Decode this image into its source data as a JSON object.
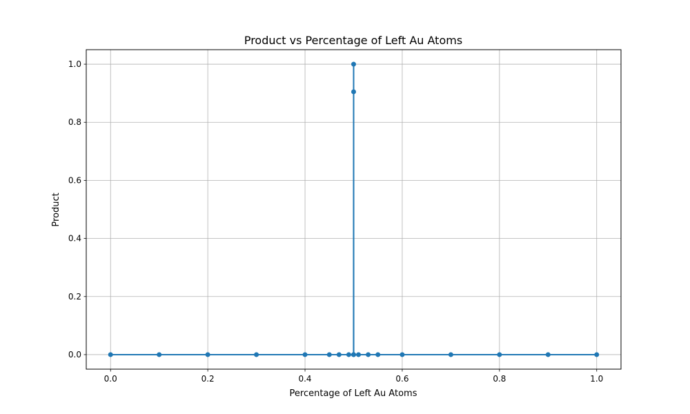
{
  "chart_data": {
    "type": "line",
    "title": "Product vs Percentage of Left Au Atoms",
    "xlabel": "Percentage of Left Au Atoms",
    "ylabel": "Product",
    "xlim": [
      -0.05,
      1.05
    ],
    "ylim": [
      -0.05,
      1.05
    ],
    "xticks": [
      "0.0",
      "0.2",
      "0.4",
      "0.6",
      "0.8",
      "1.0"
    ],
    "yticks": [
      "0.0",
      "0.2",
      "0.4",
      "0.6",
      "0.8",
      "1.0"
    ],
    "grid": true,
    "series": [
      {
        "color": "#1f77b4",
        "marker": "circle",
        "x": [
          0.0,
          0.1,
          0.2,
          0.3,
          0.4,
          0.45,
          0.47,
          0.49,
          0.4999,
          0.5,
          0.50001,
          0.5001,
          0.51,
          0.53,
          0.55,
          0.6,
          0.7,
          0.8,
          0.9,
          1.0
        ],
        "y": [
          0.0,
          0.0,
          0.0,
          0.0,
          0.0,
          0.0,
          0.0,
          0.0,
          0.0,
          1.0,
          0.905,
          0.0,
          0.0,
          0.0,
          0.0,
          0.0,
          0.0,
          0.0,
          0.0,
          0.0
        ]
      }
    ]
  }
}
